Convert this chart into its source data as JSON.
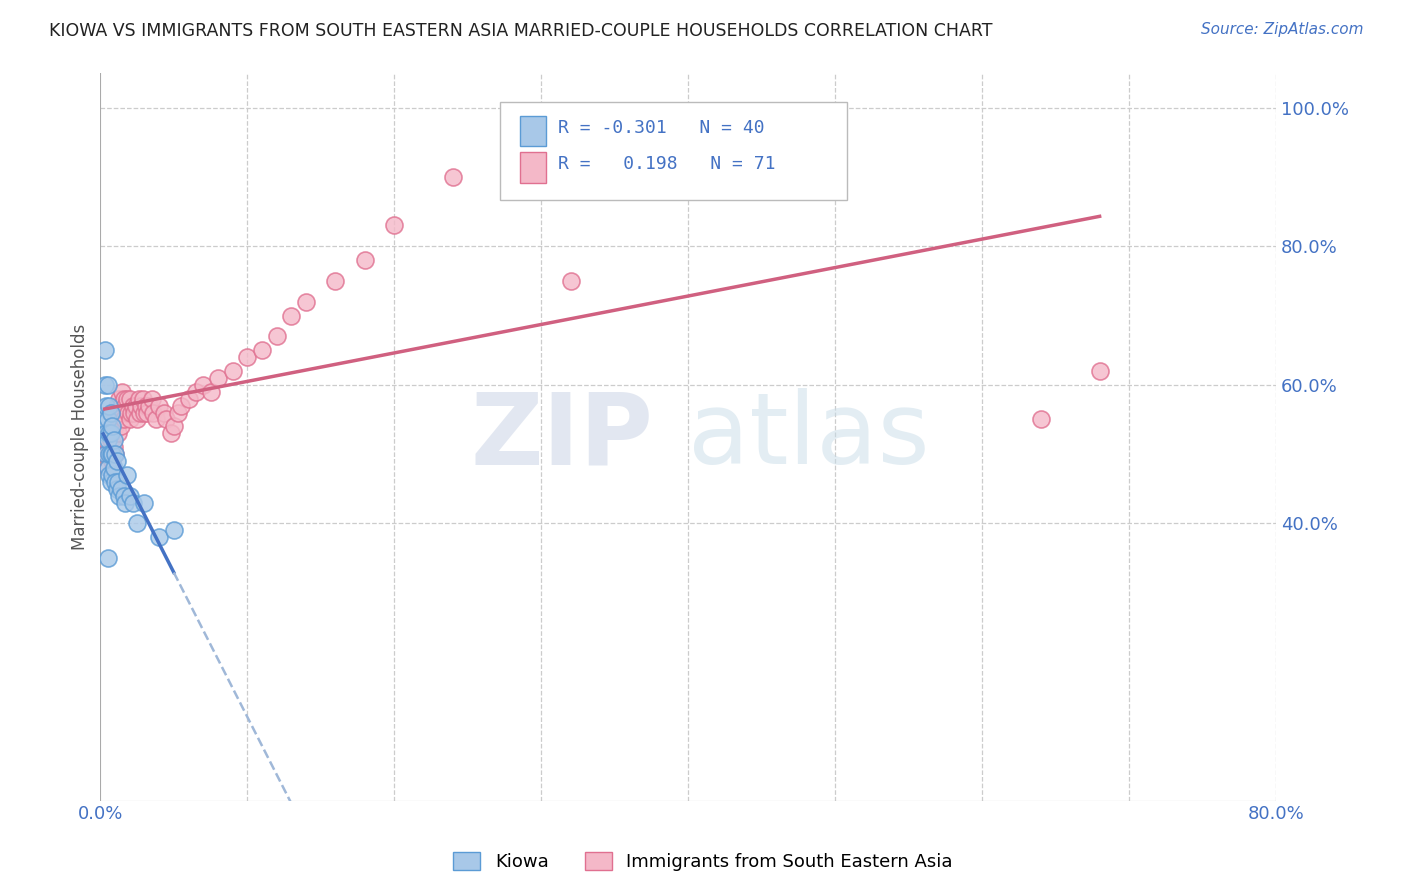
{
  "title": "KIOWA VS IMMIGRANTS FROM SOUTH EASTERN ASIA MARRIED-COUPLE HOUSEHOLDS CORRELATION CHART",
  "source": "Source: ZipAtlas.com",
  "ylabel": "Married-couple Households",
  "xlim": [
    0.0,
    0.8
  ],
  "ylim": [
    0.0,
    1.05
  ],
  "color_kiowa_fill": "#a8c8e8",
  "color_kiowa_edge": "#5b9bd5",
  "color_immigrants_fill": "#f4b8c8",
  "color_immigrants_edge": "#e07090",
  "color_line_kiowa": "#4472c4",
  "color_line_immigrants": "#d06080",
  "color_line_kiowa_dash": "#a0b8d8",
  "bg_color": "#ffffff",
  "grid_color": "#cccccc",
  "kiowa_x": [
    0.002,
    0.003,
    0.003,
    0.004,
    0.004,
    0.004,
    0.005,
    0.005,
    0.005,
    0.005,
    0.005,
    0.006,
    0.006,
    0.006,
    0.006,
    0.007,
    0.007,
    0.007,
    0.007,
    0.008,
    0.008,
    0.008,
    0.009,
    0.009,
    0.01,
    0.01,
    0.011,
    0.011,
    0.012,
    0.013,
    0.014,
    0.016,
    0.017,
    0.018,
    0.02,
    0.022,
    0.025,
    0.03,
    0.04,
    0.05
  ],
  "kiowa_y": [
    0.55,
    0.6,
    0.65,
    0.5,
    0.53,
    0.57,
    0.48,
    0.52,
    0.55,
    0.6,
    0.35,
    0.47,
    0.5,
    0.53,
    0.57,
    0.46,
    0.5,
    0.53,
    0.56,
    0.47,
    0.5,
    0.54,
    0.48,
    0.52,
    0.46,
    0.5,
    0.45,
    0.49,
    0.46,
    0.44,
    0.45,
    0.44,
    0.43,
    0.47,
    0.44,
    0.43,
    0.4,
    0.43,
    0.38,
    0.39
  ],
  "immigrants_x": [
    0.003,
    0.004,
    0.005,
    0.006,
    0.007,
    0.007,
    0.008,
    0.008,
    0.009,
    0.009,
    0.01,
    0.01,
    0.011,
    0.012,
    0.012,
    0.013,
    0.013,
    0.014,
    0.014,
    0.015,
    0.015,
    0.016,
    0.016,
    0.017,
    0.018,
    0.019,
    0.02,
    0.02,
    0.021,
    0.022,
    0.023,
    0.024,
    0.025,
    0.026,
    0.027,
    0.028,
    0.029,
    0.03,
    0.031,
    0.032,
    0.033,
    0.035,
    0.036,
    0.038,
    0.04,
    0.043,
    0.045,
    0.048,
    0.05,
    0.053,
    0.055,
    0.06,
    0.065,
    0.07,
    0.075,
    0.08,
    0.09,
    0.1,
    0.11,
    0.12,
    0.13,
    0.14,
    0.16,
    0.18,
    0.2,
    0.24,
    0.28,
    0.32,
    0.38,
    0.64,
    0.68
  ],
  "immigrants_y": [
    0.5,
    0.52,
    0.48,
    0.5,
    0.52,
    0.56,
    0.49,
    0.54,
    0.51,
    0.55,
    0.5,
    0.54,
    0.57,
    0.53,
    0.57,
    0.55,
    0.58,
    0.54,
    0.57,
    0.56,
    0.59,
    0.55,
    0.58,
    0.57,
    0.58,
    0.56,
    0.55,
    0.58,
    0.56,
    0.57,
    0.56,
    0.57,
    0.55,
    0.58,
    0.56,
    0.57,
    0.58,
    0.56,
    0.57,
    0.56,
    0.57,
    0.58,
    0.56,
    0.55,
    0.57,
    0.56,
    0.55,
    0.53,
    0.54,
    0.56,
    0.57,
    0.58,
    0.59,
    0.6,
    0.59,
    0.61,
    0.62,
    0.64,
    0.65,
    0.67,
    0.7,
    0.72,
    0.75,
    0.78,
    0.83,
    0.9,
    0.96,
    0.75,
    0.91,
    0.55,
    0.62
  ],
  "watermark_zip": "ZIP",
  "watermark_atlas": "atlas",
  "legend_entries": [
    {
      "r": "-0.301",
      "n": "40"
    },
    {
      "r": "0.198",
      "n": "71"
    }
  ]
}
